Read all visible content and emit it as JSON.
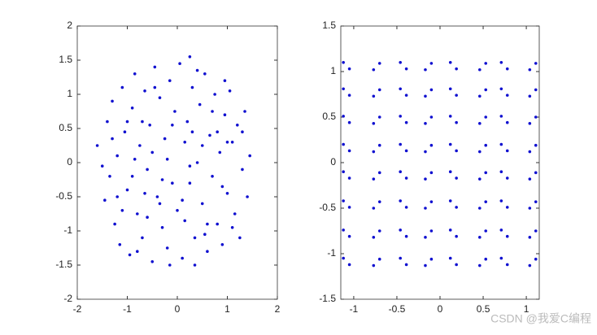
{
  "chart_data": [
    {
      "type": "scatter",
      "color": "#1010d0",
      "xlim": [
        -2,
        2
      ],
      "ylim": [
        -2,
        2
      ],
      "xticks": [
        -2,
        -1,
        0,
        1,
        2
      ],
      "yticks": [
        -2,
        -1.5,
        -1,
        -0.5,
        0,
        0.5,
        1,
        1.5,
        2
      ],
      "x": [
        -1.6,
        -1.45,
        -1.4,
        -1.35,
        -1.3,
        -1.25,
        -1.2,
        -1.15,
        -1.1,
        -1.05,
        -1.0,
        -0.95,
        -0.9,
        -0.85,
        -0.8,
        -0.75,
        -0.7,
        -0.65,
        -0.6,
        -0.55,
        -0.5,
        -0.45,
        -0.4,
        -0.35,
        -0.3,
        -0.25,
        -0.2,
        -0.15,
        -0.1,
        -0.05,
        0.0,
        0.05,
        0.1,
        0.15,
        0.2,
        0.25,
        0.3,
        0.35,
        0.4,
        0.45,
        0.5,
        0.55,
        0.6,
        0.65,
        0.7,
        0.75,
        0.8,
        0.85,
        0.9,
        0.95,
        1.0,
        1.05,
        1.1,
        1.15,
        1.2,
        1.25,
        1.3,
        1.35,
        1.4,
        1.45,
        -1.5,
        -1.3,
        -1.1,
        -0.9,
        -0.7,
        -0.5,
        -0.3,
        -0.1,
        0.1,
        0.3,
        0.5,
        0.7,
        0.9,
        1.1,
        1.3,
        -0.2,
        0.25,
        -0.35,
        0.6,
        0.15,
        -0.65,
        -0.85,
        0.8,
        -0.45,
        0.4,
        -1.0,
        1.0,
        -0.6,
        0.55,
        -0.15,
        0.25,
        0.35,
        -0.8,
        0.95,
        -1.2
      ],
      "y": [
        0.25,
        -0.55,
        0.6,
        -0.2,
        0.9,
        -0.9,
        0.1,
        -1.2,
        1.1,
        0.45,
        -0.4,
        -1.35,
        0.8,
        1.3,
        -0.75,
        0.25,
        -1.1,
        1.05,
        -0.1,
        0.55,
        -1.45,
        1.4,
        -0.5,
        0.95,
        -0.95,
        0.35,
        -1.25,
        1.2,
        -0.3,
        0.75,
        -0.7,
        1.45,
        -1.4,
        0.3,
        0.6,
        -0.3,
        1.1,
        -1.1,
        0.0,
        0.85,
        -0.6,
        1.3,
        -1.3,
        0.4,
        -0.2,
        1.0,
        -0.9,
        0.15,
        -1.2,
        0.7,
        -0.45,
        1.05,
        0.3,
        -0.75,
        0.55,
        -1.1,
        -0.1,
        0.75,
        -0.5,
        0.1,
        -0.05,
        0.35,
        -0.7,
        -0.2,
        0.6,
        0.15,
        -0.25,
        0.55,
        -0.55,
        0.45,
        0.25,
        0.75,
        -0.35,
        -0.95,
        0.45,
        0.05,
        -0.05,
        -0.6,
        -0.9,
        -0.85,
        -0.45,
        0.05,
        0.45,
        1.1,
        1.35,
        0.6,
        0.3,
        -0.8,
        -1.05,
        -1.5,
        1.55,
        -1.5,
        -1.3,
        1.2,
        -0.5
      ]
    },
    {
      "type": "scatter",
      "color": "#1010d0",
      "xlim": [
        -1.15,
        1.15
      ],
      "ylim": [
        -1.5,
        1.5
      ],
      "xticks": [
        -1,
        -0.5,
        0,
        0.5,
        1
      ],
      "yticks": [
        -1.5,
        -1,
        -0.5,
        0,
        0.5,
        1,
        1.5
      ],
      "x": [
        -1.12,
        -1.05,
        -0.77,
        -0.7,
        -0.46,
        -0.39,
        -0.17,
        -0.1,
        0.12,
        0.19,
        0.46,
        0.53,
        0.71,
        0.78,
        1.04,
        1.11,
        -1.12,
        -1.05,
        -0.77,
        -0.7,
        -0.46,
        -0.39,
        -0.17,
        -0.1,
        0.12,
        0.19,
        0.46,
        0.53,
        0.71,
        0.78,
        1.04,
        1.11,
        -1.12,
        -1.05,
        -0.77,
        -0.7,
        -0.46,
        -0.39,
        -0.17,
        -0.1,
        0.12,
        0.19,
        0.46,
        0.53,
        0.71,
        0.78,
        1.04,
        1.11,
        -1.12,
        -1.05,
        -0.77,
        -0.7,
        -0.46,
        -0.39,
        -0.17,
        -0.1,
        0.12,
        0.19,
        0.46,
        0.53,
        0.71,
        0.78,
        1.04,
        1.11,
        -1.12,
        -1.05,
        -0.77,
        -0.7,
        -0.46,
        -0.39,
        -0.17,
        -0.1,
        0.12,
        0.19,
        0.46,
        0.53,
        0.71,
        0.78,
        1.04,
        1.11,
        -1.12,
        -1.05,
        -0.77,
        -0.7,
        -0.46,
        -0.39,
        -0.17,
        -0.1,
        0.12,
        0.19,
        0.46,
        0.53,
        0.71,
        0.78,
        1.04,
        1.11,
        -1.12,
        -1.05,
        -0.77,
        -0.7,
        -0.46,
        -0.39,
        -0.17,
        -0.1,
        0.12,
        0.19,
        0.46,
        0.53,
        0.71,
        0.78,
        1.04,
        1.11,
        -1.12,
        -1.05,
        -0.77,
        -0.7,
        -0.46,
        -0.39,
        -0.17,
        -0.1,
        0.12,
        0.19,
        0.46,
        0.53,
        0.71,
        0.78,
        1.04,
        1.11
      ],
      "y": [
        1.1,
        1.03,
        1.02,
        1.09,
        1.1,
        1.03,
        1.02,
        1.09,
        1.1,
        1.03,
        1.02,
        1.09,
        1.1,
        1.03,
        1.02,
        1.09,
        0.81,
        0.74,
        0.73,
        0.8,
        0.81,
        0.74,
        0.73,
        0.8,
        0.81,
        0.74,
        0.73,
        0.8,
        0.81,
        0.74,
        0.73,
        0.8,
        0.51,
        0.44,
        0.43,
        0.5,
        0.51,
        0.44,
        0.43,
        0.5,
        0.51,
        0.44,
        0.43,
        0.5,
        0.51,
        0.44,
        0.43,
        0.5,
        0.2,
        0.13,
        0.12,
        0.19,
        0.2,
        0.13,
        0.12,
        0.19,
        0.2,
        0.13,
        0.12,
        0.19,
        0.2,
        0.13,
        0.12,
        0.19,
        -0.1,
        -0.17,
        -0.18,
        -0.11,
        -0.1,
        -0.17,
        -0.18,
        -0.11,
        -0.1,
        -0.17,
        -0.18,
        -0.11,
        -0.1,
        -0.17,
        -0.18,
        -0.11,
        -0.42,
        -0.49,
        -0.5,
        -0.43,
        -0.42,
        -0.49,
        -0.5,
        -0.43,
        -0.42,
        -0.49,
        -0.5,
        -0.43,
        -0.42,
        -0.49,
        -0.5,
        -0.43,
        -0.74,
        -0.81,
        -0.82,
        -0.75,
        -0.74,
        -0.81,
        -0.82,
        -0.75,
        -0.74,
        -0.81,
        -0.82,
        -0.75,
        -0.74,
        -0.81,
        -0.82,
        -0.75,
        -1.05,
        -1.12,
        -1.13,
        -1.06,
        -1.05,
        -1.12,
        -1.13,
        -1.06,
        -1.05,
        -1.12,
        -1.13,
        -1.06,
        -1.05,
        -1.12,
        -1.13,
        -1.06
      ]
    }
  ],
  "watermark": "CSDN @我爱C编程"
}
